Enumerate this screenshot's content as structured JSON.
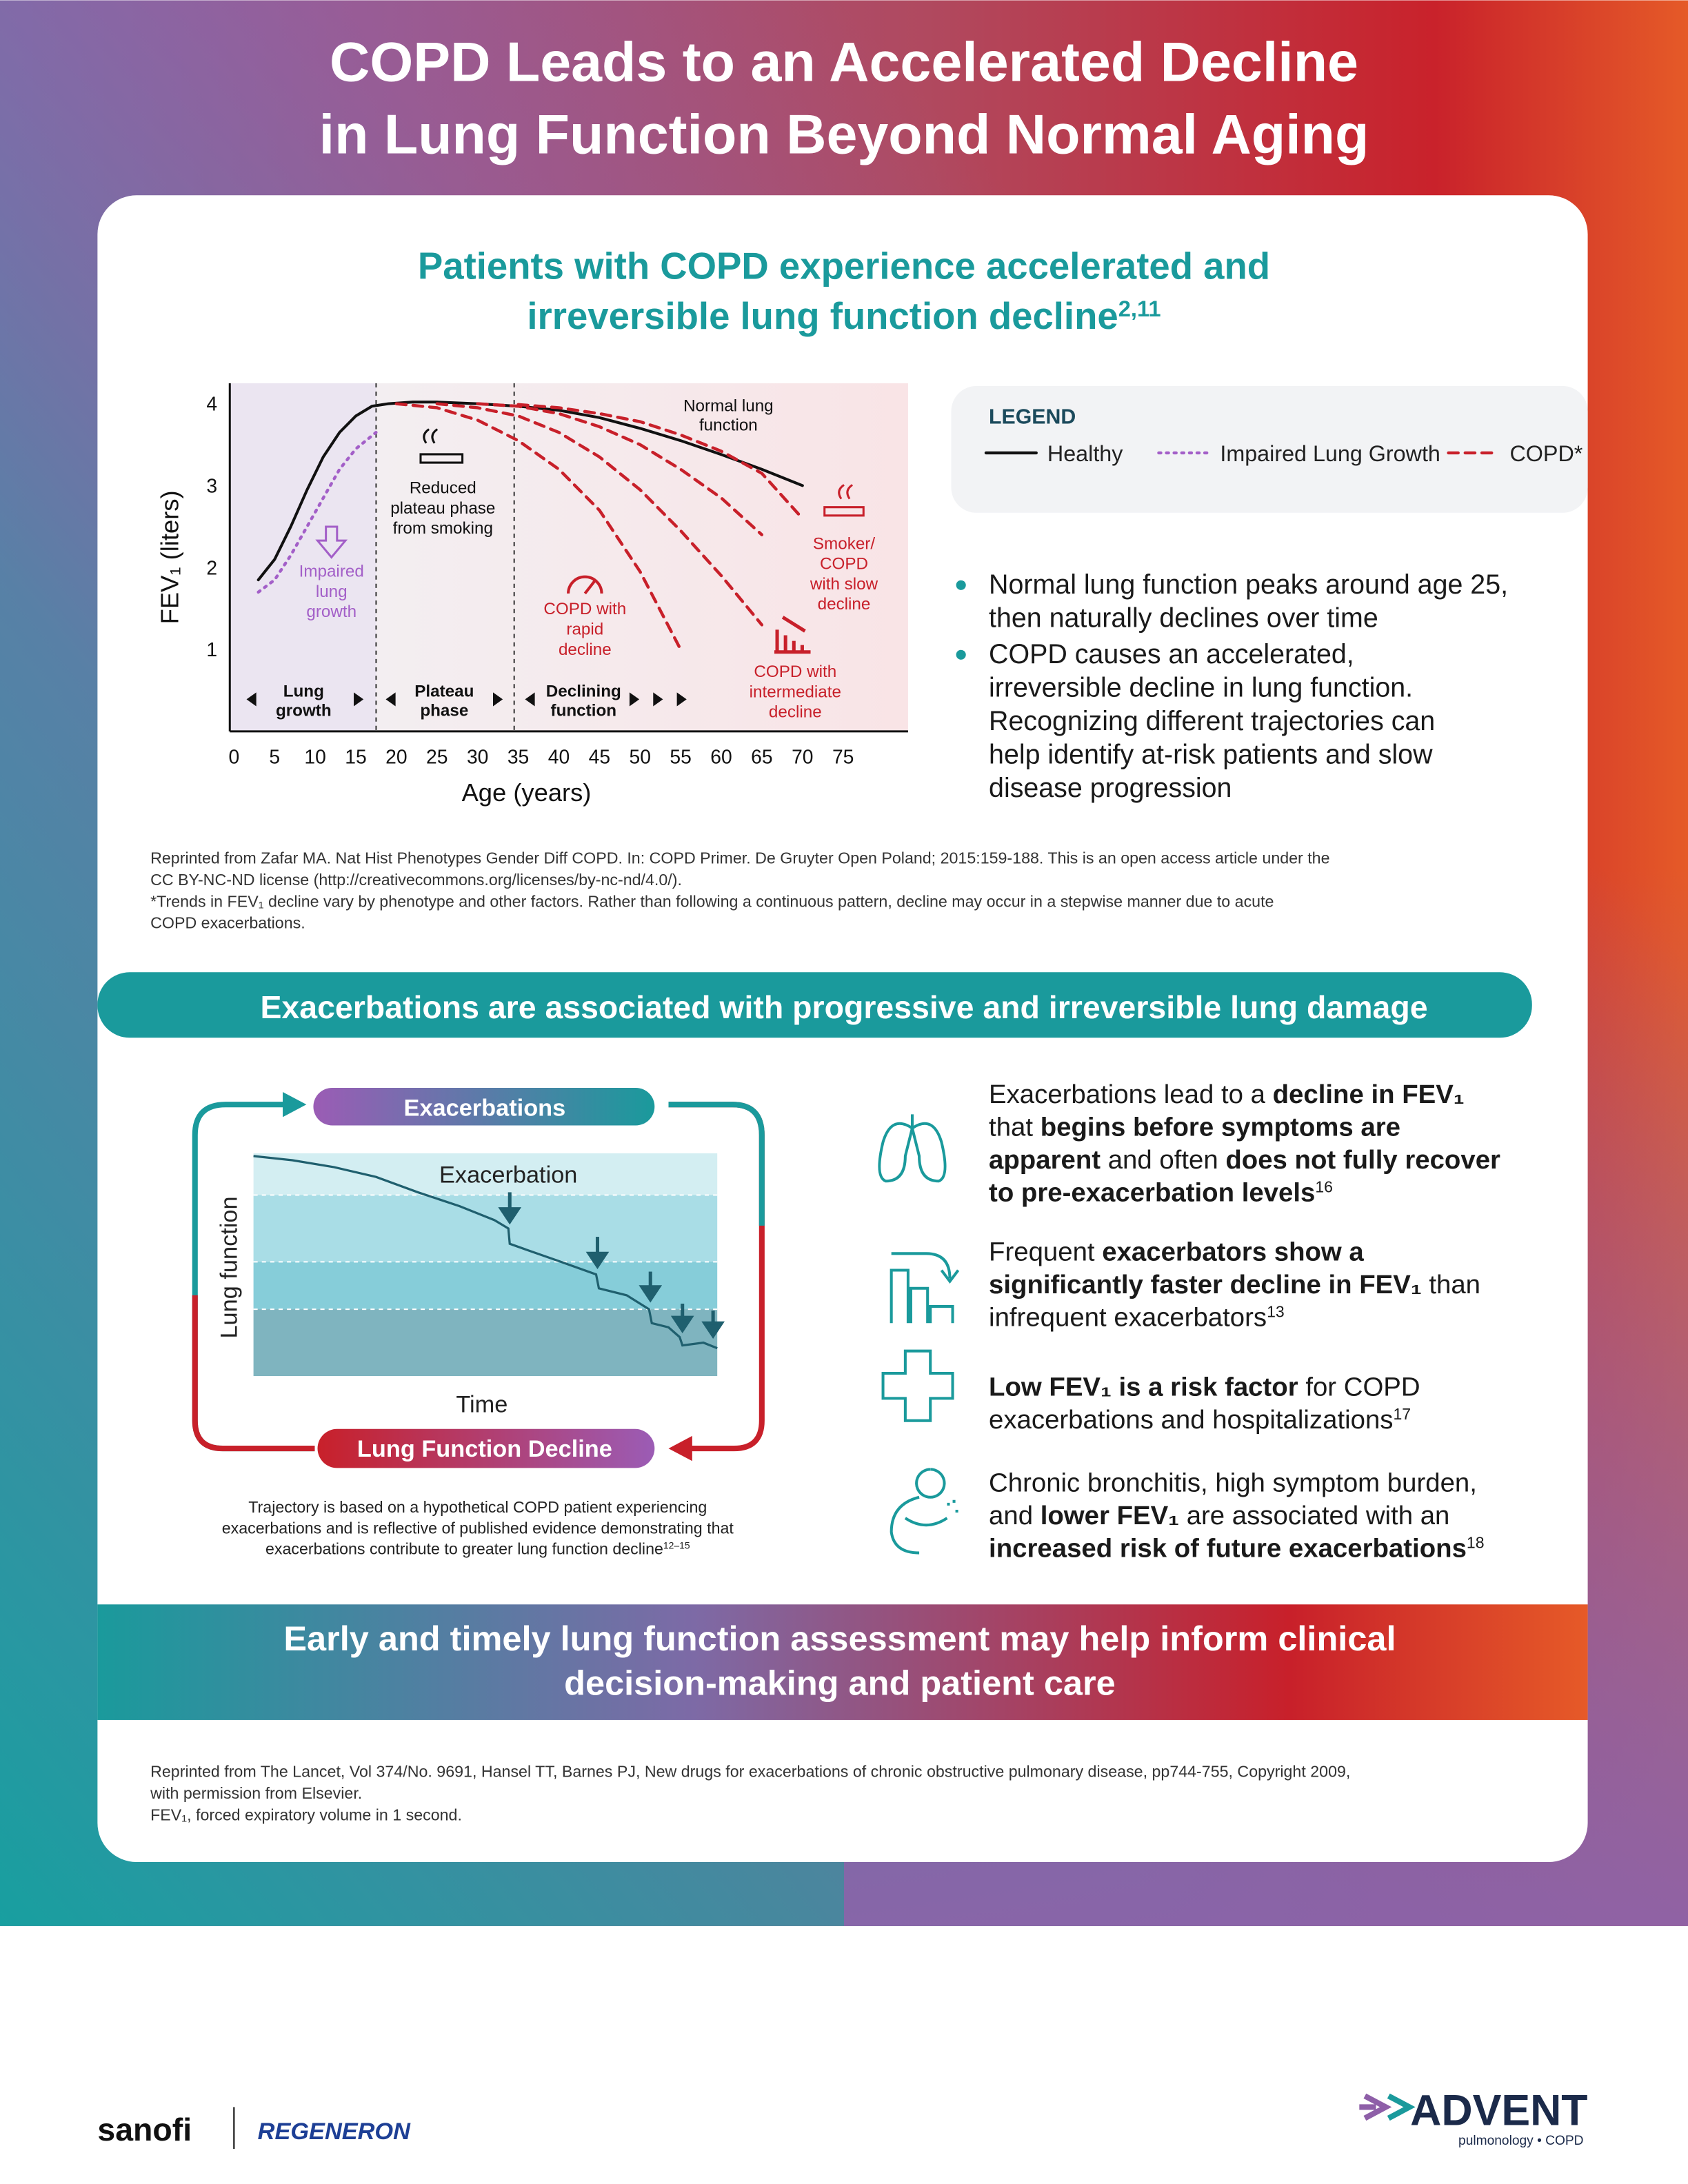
{
  "header": {
    "title": [
      "COPD Leads to an Accelerated Decline",
      "in Lung Function Beyond Normal Aging"
    ]
  },
  "section1": {
    "heading": [
      [
        {
          "text": "Patients with COPD experience accelerated and",
          "style": "n"
        }
      ],
      [
        {
          "text": "irreversible lung function decline",
          "style": "n"
        },
        {
          "text": "2,11",
          "style": "sup"
        }
      ]
    ],
    "legend_title": "LEGEND",
    "bullets": [
      [
        "Normal lung function peaks around age 25,",
        "then naturally declines over time"
      ],
      [
        "COPD causes an accelerated,",
        "irreversible decline in lung function.",
        "Recognizing different trajectories can",
        "help identify at-risk patients and slow",
        "disease progression"
      ]
    ],
    "footnotes": [
      "Reprinted from Zafar MA. Nat Hist Phenotypes Gender Diff COPD. In: COPD Primer. De Gruyter Open Poland; 2015:159-188. This is an open access article under the",
      "CC BY-NC-ND license (http://creativecommons.org/licenses/by-nc-nd/4.0/).",
      "*Trends in FEV₁ decline vary by phenotype and other factors. Rather than following a continuous pattern, decline may occur in a stepwise manner due to acute",
      "COPD exacerbations."
    ]
  },
  "chart_data": {
    "type": "line",
    "x_label": "Age (years)",
    "y_label": "FEV₁ (liters)",
    "xlim": [
      0,
      83
    ],
    "ylim": [
      0,
      4.25
    ],
    "xticks": [
      0,
      5,
      10,
      15,
      20,
      25,
      30,
      35,
      40,
      45,
      50,
      55,
      60,
      65,
      70,
      75
    ],
    "yticks": [
      1,
      2,
      3,
      4
    ],
    "phase_boundaries": [
      17.5,
      34.5
    ],
    "phases": [
      [
        "Lung",
        "growth"
      ],
      [
        "Plateau",
        "phase"
      ],
      [
        "Declining",
        "function"
      ]
    ],
    "annotations": {
      "normal": [
        "Normal lung",
        "function"
      ],
      "plateau": [
        "Reduced",
        "plateau phase",
        "from smoking"
      ],
      "impaired": [
        "Impaired",
        "lung",
        "growth"
      ],
      "rapid": [
        "COPD with",
        "rapid",
        "decline"
      ],
      "intermediate": [
        "COPD with",
        "intermediate",
        "decline"
      ],
      "slow": [
        "Smoker/",
        "COPD",
        "with slow",
        "decline"
      ]
    },
    "series": [
      {
        "name": "Healthy",
        "color": "#111111",
        "dash": "solid",
        "x": [
          3,
          5,
          7,
          9,
          11,
          13,
          15,
          17,
          19,
          22,
          25,
          30,
          35,
          40,
          45,
          50,
          55,
          60,
          65,
          70
        ],
        "values": [
          1.85,
          2.1,
          2.5,
          2.95,
          3.35,
          3.65,
          3.85,
          3.97,
          4,
          4.02,
          4.02,
          4.0,
          3.97,
          3.92,
          3.83,
          3.7,
          3.55,
          3.38,
          3.2,
          3.0
        ]
      },
      {
        "name": "Impaired Lung Growth",
        "color": "#a35fc8",
        "dash": "dotted",
        "x": [
          3,
          5,
          7,
          9,
          11,
          13,
          15,
          17.5
        ],
        "values": [
          1.7,
          1.85,
          2.15,
          2.5,
          2.85,
          3.2,
          3.45,
          3.65
        ]
      },
      {
        "name": "COPD*",
        "color": "#c8202a",
        "dash": "dashed",
        "x": [
          20,
          25,
          30,
          35,
          40,
          45,
          50,
          55,
          null,
          25,
          30,
          35,
          40,
          45,
          50,
          55,
          60,
          65,
          null,
          30,
          35,
          40,
          45,
          50,
          55,
          60,
          65,
          null,
          35,
          40,
          45,
          50,
          55,
          60,
          65,
          70
        ],
        "values": [
          4,
          3.95,
          3.8,
          3.55,
          3.2,
          2.7,
          1.95,
          1.0,
          null,
          4,
          3.95,
          3.85,
          3.65,
          3.35,
          2.95,
          2.45,
          1.9,
          1.3,
          null,
          4,
          3.97,
          3.88,
          3.72,
          3.5,
          3.2,
          2.85,
          2.4,
          null,
          3.99,
          3.95,
          3.88,
          3.78,
          3.62,
          3.42,
          3.15,
          2.6
        ]
      }
    ]
  },
  "section2": {
    "banner": "Exacerbations are associated with progressive and irreversible lung damage",
    "cycle_top": "Exacerbations",
    "cycle_bottom": "Lung Function Decline",
    "event_label": "Exacerbation",
    "y_label": "Lung function",
    "x_label": "Time",
    "caption": [
      [
        {
          "text": "Trajectory is based on a hypothetical COPD patient experiencing",
          "style": "n"
        }
      ],
      [
        {
          "text": "exacerbations and is reflective of published evidence demonstrating that",
          "style": "n"
        }
      ],
      [
        {
          "text": "exacerbations contribute to greater lung function decline",
          "style": "n"
        },
        {
          "text": "12–15",
          "style": "sup"
        }
      ]
    ],
    "bullets": [
      [
        [
          {
            "text": "Exacerbations lead to a ",
            "style": "n"
          },
          {
            "text": "decline in FEV₁",
            "style": "b"
          }
        ],
        [
          {
            "text": "that ",
            "style": "n"
          },
          {
            "text": "begins before symptoms are",
            "style": "b"
          }
        ],
        [
          {
            "text": "apparent",
            "style": "b"
          },
          {
            "text": " and often ",
            "style": "n"
          },
          {
            "text": "does not fully recover",
            "style": "b"
          }
        ],
        [
          {
            "text": "to pre-exacerbation levels",
            "style": "b"
          },
          {
            "text": "16",
            "style": "sup"
          }
        ]
      ],
      [
        [
          {
            "text": "Frequent ",
            "style": "n"
          },
          {
            "text": "exacerbators show a",
            "style": "b"
          }
        ],
        [
          {
            "text": "significantly faster decline in FEV₁",
            "style": "b"
          },
          {
            "text": " than",
            "style": "n"
          }
        ],
        [
          {
            "text": "infrequent exacerbators",
            "style": "n"
          },
          {
            "text": "13",
            "style": "sup"
          }
        ]
      ],
      [
        [
          {
            "text": "Low FEV₁ is a risk factor",
            "style": "b"
          },
          {
            "text": " for COPD",
            "style": "n"
          }
        ],
        [
          {
            "text": "exacerbations and hospitalizations",
            "style": "n"
          },
          {
            "text": "17",
            "style": "sup"
          }
        ]
      ],
      [
        [
          {
            "text": "Chronic bronchitis, high symptom burden,",
            "style": "n"
          }
        ],
        [
          {
            "text": "and ",
            "style": "n"
          },
          {
            "text": "lower FEV₁",
            "style": "b"
          },
          {
            "text": " are associated with an",
            "style": "n"
          }
        ],
        [
          {
            "text": "increased risk of future exacerbations",
            "style": "b"
          },
          {
            "text": "18",
            "style": "sup"
          }
        ]
      ]
    ]
  },
  "footer_banner": [
    "Early and timely lung function assessment may help inform clinical",
    "decision-making and patient care"
  ],
  "footnotes": [
    "Reprinted from The Lancet, Vol 374/No. 9691, Hansel TT, Barnes PJ, New drugs for exacerbations of chronic obstructive pulmonary disease, pp744-755, Copyright 2009,",
    "with permission from Elsevier.",
    "FEV₁, forced expiratory volume in 1 second."
  ],
  "logos": {
    "sanofi": "sanofi",
    "regeneron": "REGENERON",
    "advent": "ADVENT",
    "advent_tagline": "pulmonology • COPD"
  }
}
